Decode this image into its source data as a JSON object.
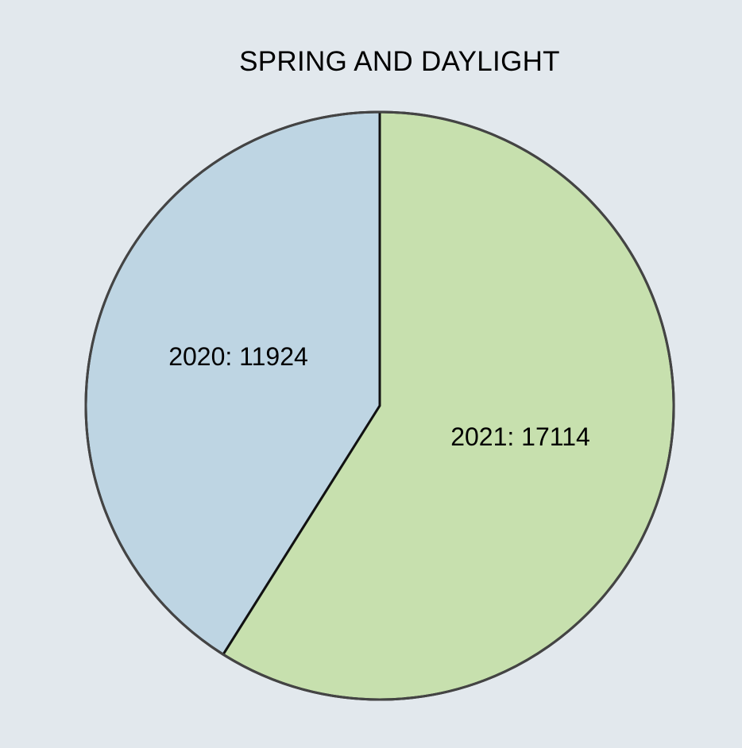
{
  "chart_data": {
    "type": "pie",
    "title": "SPRING AND DAYLIGHT",
    "categories": [
      "2020",
      "2021"
    ],
    "values": [
      11924,
      17114
    ],
    "colors": [
      "#bed5e3",
      "#c7e0ae"
    ],
    "labels": [
      "2020: 11924",
      "2021: 17114"
    ],
    "stroke_color": "#444444",
    "start_angle": "top",
    "direction": "counter-clockwise from top for first slice"
  }
}
